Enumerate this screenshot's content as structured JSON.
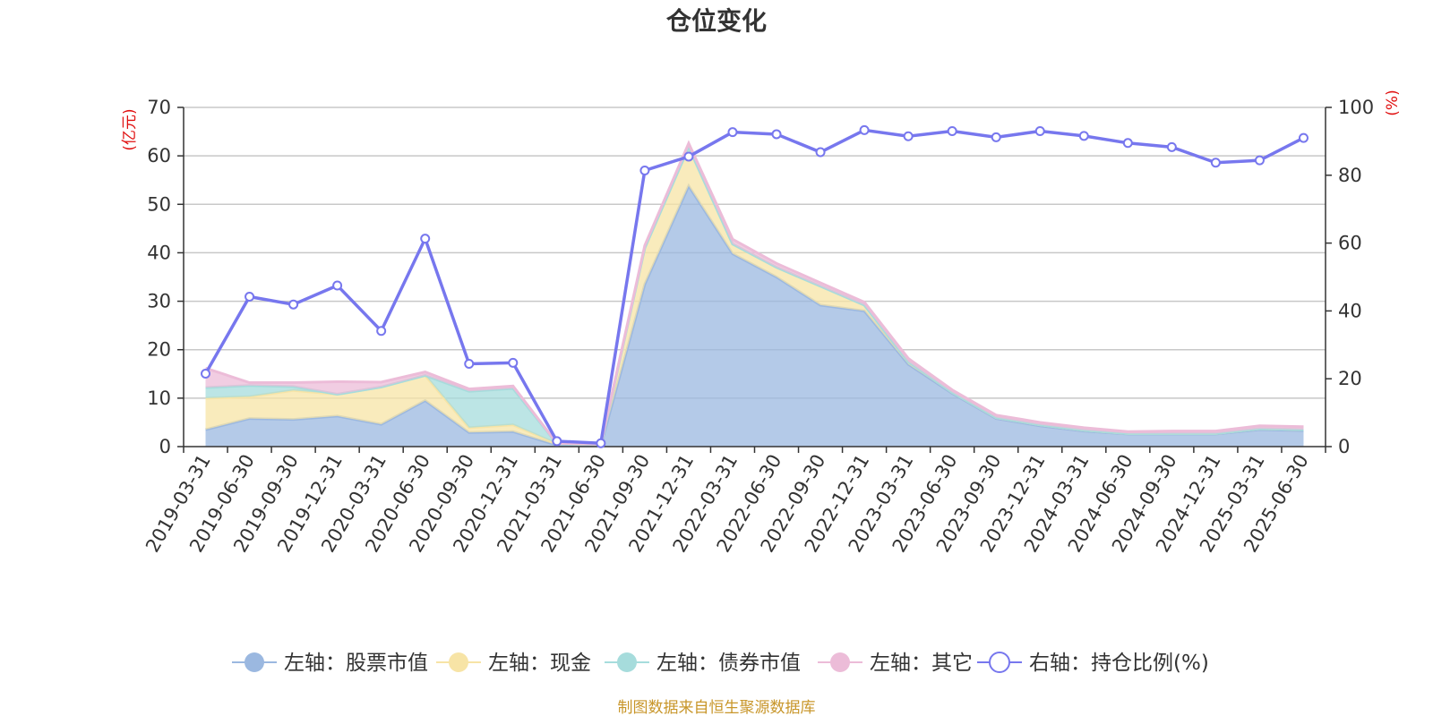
{
  "title": "仓位变化",
  "source_note": "制图数据来自恒生聚源数据库",
  "chart_data": {
    "type": "area",
    "left_axis": {
      "unit": "(亿元)",
      "min": 0,
      "max": 70,
      "ticks": [
        0,
        10,
        20,
        30,
        40,
        50,
        60,
        70
      ]
    },
    "right_axis": {
      "unit": "(%)",
      "min": 0,
      "max": 100,
      "ticks": [
        0,
        20,
        40,
        60,
        80,
        100
      ]
    },
    "grid": true,
    "legend_position": "bottom",
    "x": [
      "2019-03-31",
      "2019-06-30",
      "2019-09-30",
      "2019-12-31",
      "2020-03-31",
      "2020-06-30",
      "2020-09-30",
      "2020-12-31",
      "2021-03-31",
      "2021-06-30",
      "2021-09-30",
      "2021-12-31",
      "2022-03-31",
      "2022-06-30",
      "2022-09-30",
      "2022-12-31",
      "2023-03-31",
      "2023-06-30",
      "2023-09-30",
      "2023-12-31",
      "2024-03-31",
      "2024-06-30",
      "2024-09-30",
      "2024-12-31",
      "2025-03-31",
      "2025-06-30"
    ],
    "series": [
      {
        "name": "左轴：股票市值",
        "axis": "left",
        "type": "area",
        "color": "#9bb8e0",
        "values": [
          3.5,
          5.8,
          5.6,
          6.3,
          4.6,
          9.5,
          2.9,
          3.1,
          0.3,
          0.2,
          33.5,
          53.8,
          39.8,
          35.0,
          29.2,
          28.0,
          17.0,
          11.0,
          5.8,
          4.3,
          3.2,
          2.6,
          2.6,
          2.6,
          3.5,
          3.3
        ]
      },
      {
        "name": "左轴：现金",
        "axis": "left",
        "type": "area",
        "color": "#f7e4a6",
        "values": [
          6.5,
          4.5,
          6.0,
          4.5,
          7.7,
          5.2,
          1.0,
          1.4,
          0.3,
          0.2,
          7.5,
          8.0,
          2.0,
          2.0,
          3.9,
          1.2,
          0.5,
          0.2,
          0.2,
          0.2,
          0.2,
          0.1,
          0.1,
          0.1,
          0.2,
          0.2
        ]
      },
      {
        "name": "左轴：债券市值",
        "axis": "left",
        "type": "area",
        "color": "#a6dcdc",
        "values": [
          2.2,
          2.3,
          0.8,
          0.0,
          0.0,
          0.0,
          7.5,
          7.5,
          0.0,
          0.0,
          0.0,
          0.0,
          0.0,
          0.0,
          0.0,
          0.0,
          0.0,
          0.0,
          0.0,
          0.0,
          0.0,
          0.0,
          0.0,
          0.0,
          0.0,
          0.0
        ]
      },
      {
        "name": "左轴：其它",
        "axis": "left",
        "type": "area",
        "color": "#ecbcd8",
        "values": [
          4.0,
          0.6,
          0.8,
          2.6,
          1.0,
          0.7,
          0.5,
          0.5,
          0.1,
          0.1,
          0.5,
          0.8,
          1.0,
          0.8,
          0.7,
          0.6,
          0.7,
          0.5,
          0.5,
          0.5,
          0.5,
          0.4,
          0.5,
          0.5,
          0.6,
          0.6
        ]
      },
      {
        "name": "右轴：持仓比例(%)",
        "axis": "right",
        "type": "line",
        "color": "#7777ee",
        "values": [
          21.5,
          44.2,
          41.9,
          47.5,
          34.1,
          61.3,
          24.4,
          24.7,
          1.6,
          1.0,
          81.4,
          85.5,
          92.7,
          92.1,
          86.8,
          93.3,
          91.5,
          93.0,
          91.2,
          93.0,
          91.6,
          89.5,
          88.3,
          83.7,
          84.4,
          91.0
        ]
      }
    ]
  }
}
